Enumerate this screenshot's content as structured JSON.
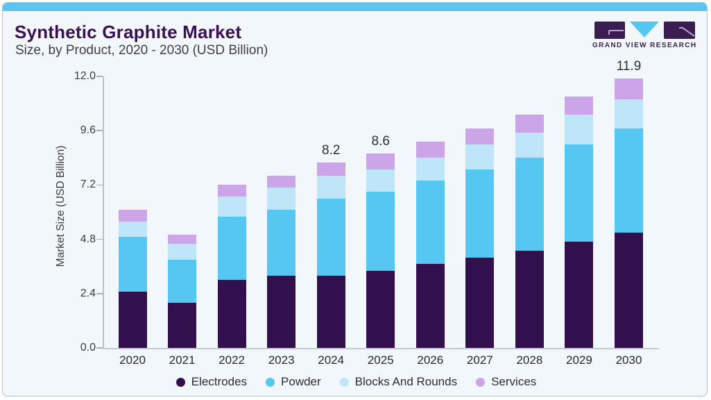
{
  "header": {
    "title": "Synthetic Graphite Market",
    "subtitle": "Size, by Product, 2020 - 2030 (USD Billion)",
    "logo_text": "GRAND VIEW RESEARCH"
  },
  "icons": {
    "logo_g_block": "gvr-logo-g-block",
    "logo_v_triangle": "gvr-logo-v-triangle",
    "logo_r_block": "gvr-logo-r-block"
  },
  "colors": {
    "accent_bar": "#5dc4ef",
    "card_background": "#f2f7fb",
    "card_border": "#b6bec6",
    "title": "#3a1053",
    "logo_purple": "#3b1d54",
    "logo_cyan": "#53c6f2",
    "axis": "#b9bfc6"
  },
  "chart_data": {
    "type": "bar",
    "stacked": true,
    "title": "Synthetic Graphite Market Size, by Product, 2020 - 2030 (USD Billion)",
    "xlabel": "",
    "ylabel": "Market Size (USD Billion)",
    "ylim": [
      0,
      12
    ],
    "ytick_labels": [
      "0.0",
      "2.4",
      "4.8",
      "7.2",
      "9.6",
      "12.0"
    ],
    "ytick_values": [
      0,
      2.4,
      4.8,
      7.2,
      9.6,
      12
    ],
    "grid": false,
    "legend_position": "bottom",
    "categories": [
      "2020",
      "2021",
      "2022",
      "2023",
      "2024",
      "2025",
      "2026",
      "2027",
      "2028",
      "2029",
      "2030"
    ],
    "series": [
      {
        "name": "Electrodes",
        "color": "#32104e",
        "values": [
          2.5,
          2.0,
          3.0,
          3.2,
          3.2,
          3.4,
          3.7,
          4.0,
          4.3,
          4.7,
          5.1
        ]
      },
      {
        "name": "Powder",
        "color": "#56c7f1",
        "values": [
          2.4,
          1.9,
          2.8,
          2.9,
          3.4,
          3.5,
          3.7,
          3.9,
          4.1,
          4.3,
          4.6
        ]
      },
      {
        "name": "Blocks And Rounds",
        "color": "#bfe6f8",
        "values": [
          0.7,
          0.7,
          0.9,
          1.0,
          1.0,
          1.0,
          1.0,
          1.1,
          1.1,
          1.3,
          1.3
        ]
      },
      {
        "name": "Services",
        "color": "#cca5e8",
        "values": [
          0.5,
          0.4,
          0.5,
          0.5,
          0.6,
          0.7,
          0.7,
          0.7,
          0.8,
          0.8,
          0.9
        ]
      }
    ],
    "total_labels": [
      "",
      "",
      "",
      "",
      "8.2",
      "8.6",
      "",
      "",
      "",
      "",
      "11.9"
    ],
    "annotated_totals": {
      "2024": 8.2,
      "2025": 8.6,
      "2030": 11.9
    }
  }
}
